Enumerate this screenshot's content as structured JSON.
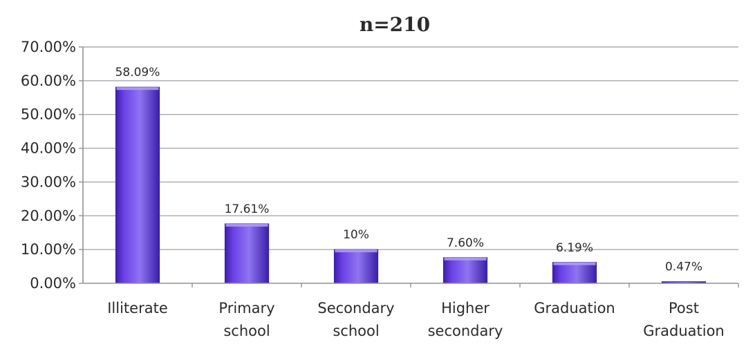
{
  "chart_data": {
    "type": "bar",
    "title": "n=210",
    "xlabel": "",
    "ylabel": "",
    "categories": [
      [
        "Illiterate"
      ],
      [
        "Primary",
        "school"
      ],
      [
        "Secondary",
        "school"
      ],
      [
        "Higher",
        "secondary"
      ],
      [
        "Graduation"
      ],
      [
        "Post",
        "Graduation"
      ]
    ],
    "values": [
      58.09,
      17.61,
      10,
      7.6,
      6.19,
      0.47
    ],
    "data_labels": [
      "58.09%",
      "17.61%",
      "10%",
      "7.60%",
      "6.19%",
      "0.47%"
    ],
    "ylim": [
      0,
      70
    ],
    "y_ticks": [
      0,
      10,
      20,
      30,
      40,
      50,
      60,
      70
    ],
    "y_tick_labels": [
      "0.00%",
      "10.00%",
      "20.00%",
      "30.00%",
      "40.00%",
      "50.00%",
      "60.00%",
      "70.00%"
    ],
    "grid": true,
    "legend": "none",
    "colors": {
      "bar_main": "#6a40e6",
      "bar_dark": "#3b1fa8",
      "bar_light": "#8f74f2",
      "bar_top": "#b3a0f7"
    }
  }
}
